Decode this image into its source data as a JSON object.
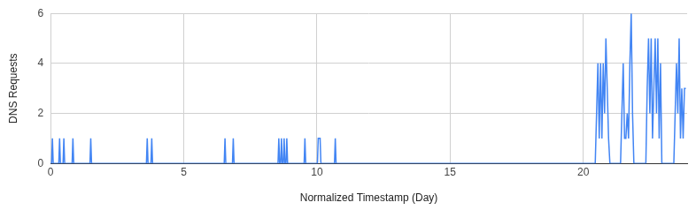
{
  "chart_data": {
    "type": "line",
    "x_label": "Normalized Timestamp (Day)",
    "y_label": "DNS Requests",
    "x": [
      0,
      0.04,
      0.07,
      0.1,
      0.31,
      0.34,
      0.37,
      0.47,
      0.5,
      0.53,
      0.81,
      0.84,
      0.87,
      1.48,
      1.51,
      1.54,
      3.6,
      3.63,
      3.66,
      3.77,
      3.8,
      3.83,
      6.52,
      6.55,
      6.58,
      6.83,
      6.86,
      6.89,
      8.54,
      8.57,
      8.6,
      8.64,
      8.67,
      8.7,
      8.74,
      8.77,
      8.8,
      8.84,
      8.87,
      8.9,
      9.52,
      9.55,
      9.58,
      10.02,
      10.05,
      10.12,
      10.15,
      10.66,
      10.69,
      10.72,
      20.45,
      20.5,
      20.55,
      20.6,
      20.65,
      20.7,
      20.75,
      20.8,
      20.85,
      20.9,
      20.95,
      21.0,
      21.4,
      21.45,
      21.5,
      21.55,
      21.6,
      21.65,
      21.7,
      21.75,
      21.8,
      21.85,
      21.9,
      22.35,
      22.4,
      22.45,
      22.5,
      22.55,
      22.6,
      22.65,
      22.7,
      22.75,
      22.8,
      22.85,
      22.9,
      22.95,
      23.4,
      23.45,
      23.5,
      23.55,
      23.6,
      23.65,
      23.7,
      23.75,
      23.8,
      23.85
    ],
    "values": [
      0,
      0,
      1,
      0,
      0,
      1,
      0,
      0,
      1,
      0,
      0,
      1,
      0,
      0,
      1,
      0,
      0,
      1,
      0,
      0,
      1,
      0,
      0,
      1,
      0,
      0,
      1,
      0,
      0,
      1,
      0,
      0,
      1,
      0,
      0,
      1,
      0,
      0,
      1,
      0,
      0,
      1,
      0,
      0,
      1,
      1,
      0,
      0,
      1,
      0,
      0,
      2,
      4,
      1,
      4,
      1,
      4,
      2,
      5,
      3,
      1,
      0,
      0,
      2,
      4,
      1,
      1,
      2,
      1,
      4,
      6,
      2,
      0,
      0,
      3,
      5,
      2,
      5,
      1,
      3,
      5,
      2,
      5,
      1,
      4,
      0,
      0,
      2,
      4,
      2,
      5,
      1,
      3,
      1,
      3,
      3
    ],
    "color": "#4285f4",
    "xlim": [
      0,
      23.9
    ],
    "xticks": [
      0,
      5,
      10,
      15,
      20
    ],
    "ylim": [
      0,
      6
    ],
    "yticks": [
      0,
      2,
      4,
      6
    ],
    "grid": true
  }
}
